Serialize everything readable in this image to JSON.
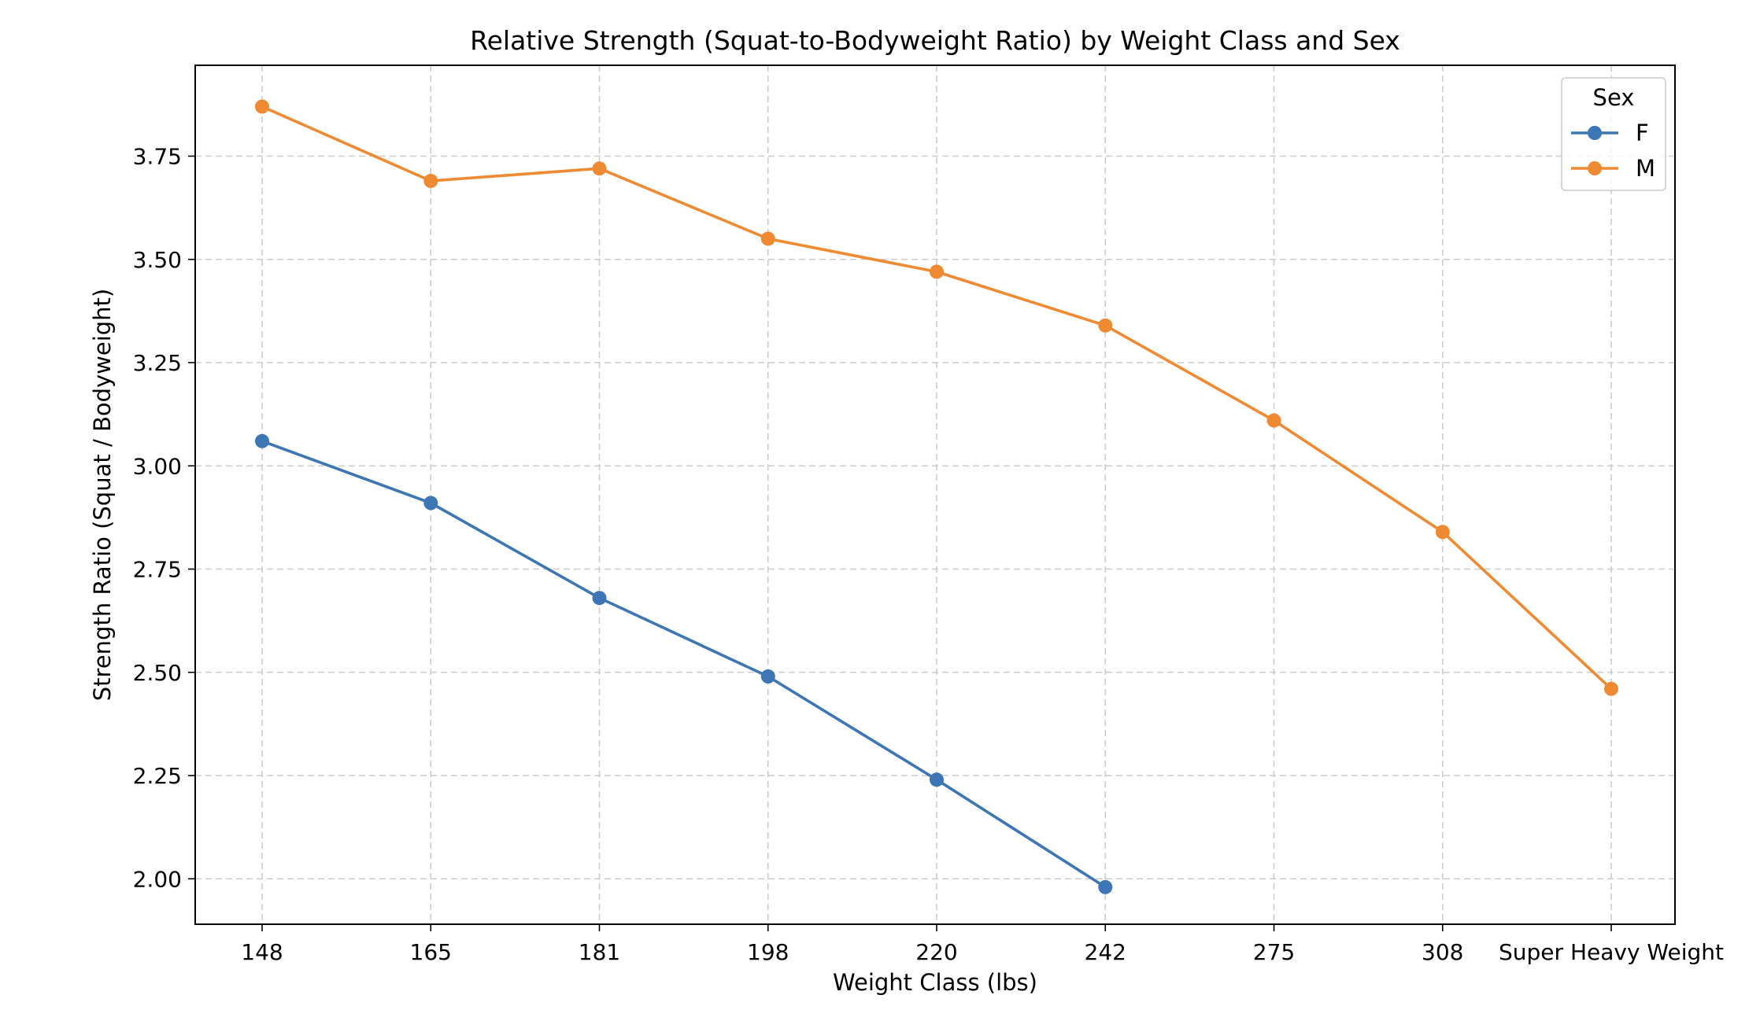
{
  "chart_data": {
    "type": "line",
    "title": "Relative Strength (Squat-to-Bodyweight Ratio) by Weight Class and Sex",
    "xlabel": "Weight Class (lbs)",
    "ylabel": "Strength Ratio (Squat / Bodyweight)",
    "categories": [
      "148",
      "165",
      "181",
      "198",
      "220",
      "242",
      "275",
      "308",
      "Super Heavy Weight"
    ],
    "ylim": [
      1.89,
      3.97
    ],
    "yticks": [
      2.0,
      2.25,
      2.5,
      2.75,
      3.0,
      3.25,
      3.5,
      3.75
    ],
    "ytick_labels": [
      "2.00",
      "2.25",
      "2.50",
      "2.75",
      "3.00",
      "3.25",
      "3.50",
      "3.75"
    ],
    "grid": true,
    "legend": {
      "title": "Sex",
      "placement": "top-right"
    },
    "series": [
      {
        "name": "F",
        "color": "#3d76b4",
        "marker": "circle",
        "values": [
          3.06,
          2.91,
          2.68,
          2.49,
          2.24,
          1.98,
          null,
          null,
          null
        ]
      },
      {
        "name": "M",
        "color": "#ef8a33",
        "marker": "circle",
        "values": [
          3.87,
          3.69,
          3.72,
          3.55,
          3.47,
          3.34,
          3.11,
          2.84,
          2.46
        ]
      }
    ]
  }
}
